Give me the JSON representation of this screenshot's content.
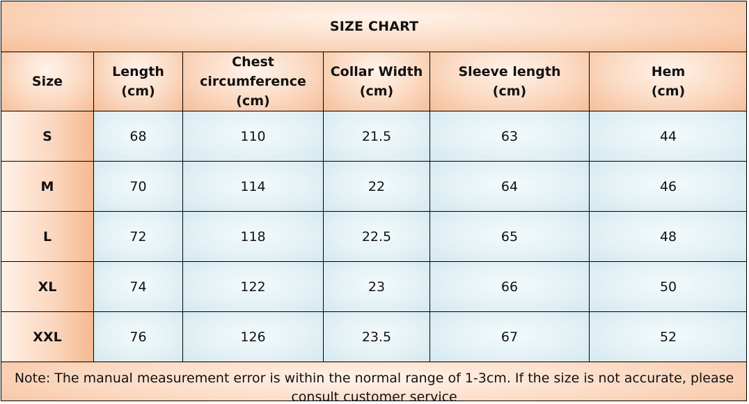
{
  "title": "SIZE CHART",
  "headers": [
    {
      "line1": "Size",
      "line2": ""
    },
    {
      "line1": "Length",
      "line2": "(cm)"
    },
    {
      "line1": "Chest circumference",
      "line2": "(cm)"
    },
    {
      "line1": "Collar Width",
      "line2": "(cm)"
    },
    {
      "line1": "Sleeve length",
      "line2": "(cm)"
    },
    {
      "line1": "Hem",
      "line2": "(cm)"
    }
  ],
  "rows": [
    {
      "size": "S",
      "length": "68",
      "chest": "110",
      "collar": "21.5",
      "sleeve": "63",
      "hem": "44"
    },
    {
      "size": "M",
      "length": "70",
      "chest": "114",
      "collar": "22",
      "sleeve": "64",
      "hem": "46"
    },
    {
      "size": "L",
      "length": "72",
      "chest": "118",
      "collar": "22.5",
      "sleeve": "65",
      "hem": "48"
    },
    {
      "size": "XL",
      "length": "74",
      "chest": "122",
      "collar": "23",
      "sleeve": "66",
      "hem": "50"
    },
    {
      "size": "XXL",
      "length": "76",
      "chest": "126",
      "collar": "23.5",
      "sleeve": "67",
      "hem": "52"
    }
  ],
  "note": {
    "line1": "Note: The manual measurement error is within the normal range of 1-3cm. If the size is not accurate, please",
    "line2": "consult customer service"
  },
  "colors": {
    "header_fill": "#f6be98",
    "cell_fill": "#e4f1f5",
    "border": "#000000"
  }
}
